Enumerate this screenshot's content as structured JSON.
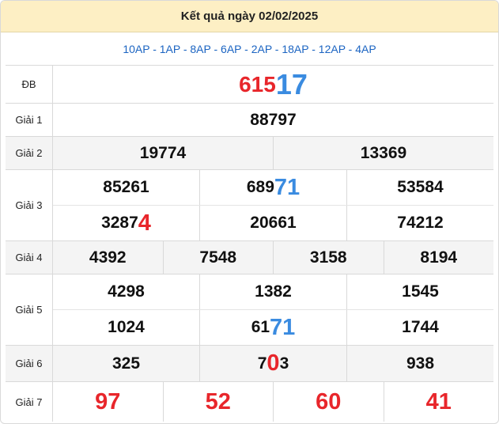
{
  "header": {
    "title": "Kết quả ngày 02/02/2025"
  },
  "codes": "10AP - 1AP - 8AP - 6AP - 2AP - 18AP - 12AP - 4AP",
  "prizes": {
    "db": {
      "label": "ĐB",
      "value_main": "615",
      "value_tail": "17"
    },
    "g1": {
      "label": "Giải 1",
      "values": [
        "88797"
      ]
    },
    "g2": {
      "label": "Giải 2",
      "values": [
        "19774",
        "13369"
      ]
    },
    "g3": {
      "label": "Giải 3",
      "row1": [
        {
          "main": "85261",
          "tail": ""
        },
        {
          "main": "689",
          "tail": "71"
        },
        {
          "main": "53584",
          "tail": ""
        }
      ],
      "row2": [
        {
          "main": "3287",
          "tail": "4"
        },
        {
          "main": "20661",
          "tail": ""
        },
        {
          "main": "74212",
          "tail": ""
        }
      ]
    },
    "g4": {
      "label": "Giải 4",
      "values": [
        "4392",
        "7548",
        "3158",
        "8194"
      ]
    },
    "g5": {
      "label": "Giải 5",
      "row1": [
        {
          "main": "4298",
          "tail": ""
        },
        {
          "main": "1382",
          "tail": ""
        },
        {
          "main": "1545",
          "tail": ""
        }
      ],
      "row2": [
        {
          "main": "1024",
          "tail": ""
        },
        {
          "main": "61",
          "tail": "71"
        },
        {
          "main": "1744",
          "tail": ""
        }
      ]
    },
    "g6": {
      "label": "Giải 6",
      "values": [
        {
          "pre": "325",
          "mid": "",
          "post": ""
        },
        {
          "pre": "7",
          "mid": "0",
          "post": "3"
        },
        {
          "pre": "938",
          "mid": "",
          "post": ""
        }
      ]
    },
    "g7": {
      "label": "Giải 7",
      "values": [
        "97",
        "52",
        "60",
        "41"
      ]
    }
  },
  "colors": {
    "red": "#e8262b",
    "blue": "#3a8be0",
    "header_bg": "#fdefc4",
    "code_text": "#1b64c2"
  }
}
